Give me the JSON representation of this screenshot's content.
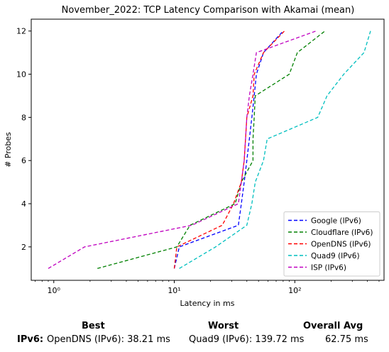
{
  "chart_data": {
    "type": "line",
    "title": "November_2022: TCP Latency Comparison with Akamai (mean)",
    "xlabel": "Latency in ms",
    "ylabel": "# Probes",
    "xscale": "log",
    "xlim": [
      0.65,
      550
    ],
    "ylim": [
      0.45,
      12.55
    ],
    "x_ticks": [
      1,
      10,
      100
    ],
    "x_tick_labels": [
      "10⁰",
      "10¹",
      "10²"
    ],
    "y_ticks": [
      2,
      4,
      6,
      8,
      10,
      12
    ],
    "grid": false,
    "legend_position": "lower-right",
    "series": [
      {
        "name": "Google (IPv6)",
        "color": "#0000ff",
        "x": [
          10.0,
          11.0,
          34.0,
          36.0,
          38.0,
          40.0,
          42.0,
          44.0,
          46.0,
          48.0,
          55.0,
          80.0
        ],
        "y": [
          1,
          2,
          3,
          4,
          5,
          6,
          7,
          8,
          9,
          10,
          11,
          12
        ]
      },
      {
        "name": "Cloudflare (IPv6)",
        "color": "#008000",
        "x": [
          2.3,
          10.5,
          13.5,
          32.0,
          36.0,
          45.0,
          45.0,
          46.0,
          47.0,
          90.0,
          105.0,
          178.0
        ],
        "y": [
          1,
          2,
          3,
          4,
          5,
          6,
          7,
          8,
          9,
          10,
          11,
          12
        ]
      },
      {
        "name": "OpenDNS (IPv6)",
        "color": "#ff0000",
        "x": [
          10.0,
          10.5,
          25.0,
          31.0,
          36.0,
          38.0,
          39.0,
          40.0,
          45.0,
          46.0,
          55.0,
          82.0
        ],
        "y": [
          1,
          2,
          3,
          4,
          5,
          6,
          7,
          8,
          9,
          10,
          11,
          12
        ]
      },
      {
        "name": "Quad9 (IPv6)",
        "color": "#00bfbf",
        "x": [
          11.0,
          22.0,
          40.0,
          44.0,
          47.0,
          55.0,
          59.0,
          155.0,
          185.0,
          255.0,
          375.0,
          425.0
        ],
        "y": [
          1,
          2,
          3,
          4,
          5,
          6,
          7,
          8,
          9,
          10,
          11,
          12
        ]
      },
      {
        "name": "ISP (IPv6)",
        "color": "#bf00bf",
        "x": [
          0.9,
          1.8,
          14.0,
          34.0,
          36.0,
          38.0,
          39.0,
          40.0,
          42.0,
          45.0,
          48.0,
          150.0
        ],
        "y": [
          1,
          2,
          3,
          4,
          5,
          6,
          7,
          8,
          9,
          10,
          11,
          12
        ]
      }
    ]
  },
  "summary": {
    "best_header": "Best",
    "worst_header": "Worst",
    "avg_header": "Overall Avg",
    "row_label": "IPv6:",
    "best": "OpenDNS (IPv6): 38.21 ms",
    "worst": "Quad9 (IPv6): 139.72 ms",
    "avg": "62.75 ms"
  }
}
